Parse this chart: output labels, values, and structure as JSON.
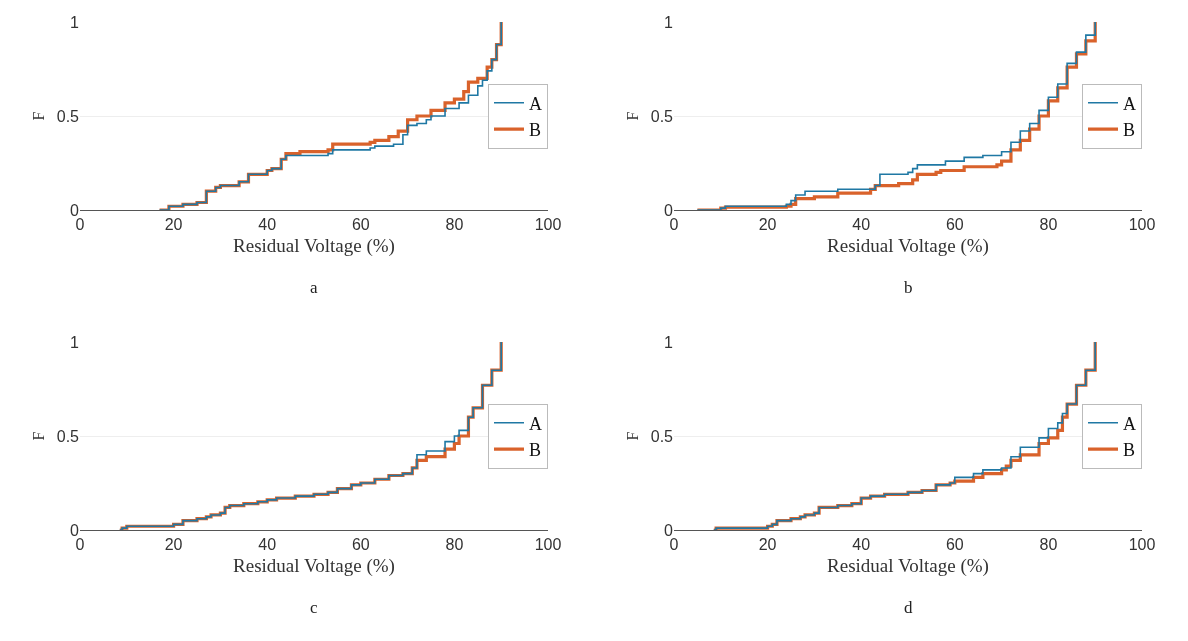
{
  "chart_data": [
    {
      "type": "step",
      "xlabel": "Residual Voltage (%)",
      "ylabel": "F",
      "annotations": [
        "a"
      ],
      "xlim": [
        0,
        100
      ],
      "ylim": [
        0,
        1
      ],
      "xticks": [
        0,
        20,
        40,
        60,
        80,
        100
      ],
      "yticks": [
        0,
        0.5,
        1
      ],
      "grid": "y",
      "legend": "right",
      "series": [
        {
          "name": "A",
          "color": "#1f78a4",
          "x": [
            17,
            19,
            22,
            25,
            27,
            29,
            30,
            34,
            36,
            40,
            41,
            43,
            44,
            47,
            53,
            54,
            62,
            63,
            67,
            69,
            70,
            72,
            74,
            75,
            78,
            81,
            83,
            85,
            86,
            87,
            88,
            89,
            90
          ],
          "values": [
            0,
            0.02,
            0.03,
            0.04,
            0.1,
            0.12,
            0.13,
            0.15,
            0.19,
            0.21,
            0.22,
            0.27,
            0.29,
            0.29,
            0.3,
            0.32,
            0.33,
            0.34,
            0.35,
            0.4,
            0.45,
            0.46,
            0.48,
            0.5,
            0.54,
            0.57,
            0.61,
            0.66,
            0.69,
            0.74,
            0.8,
            0.88,
            1
          ]
        },
        {
          "name": "B",
          "color": "#d9622b",
          "x": [
            17,
            19,
            22,
            25,
            27,
            29,
            30,
            34,
            36,
            40,
            41,
            43,
            44,
            47,
            53,
            54,
            62,
            63,
            66,
            68,
            70,
            72,
            75,
            78,
            80,
            82,
            83,
            85,
            87,
            88,
            89,
            90
          ],
          "values": [
            0,
            0.02,
            0.03,
            0.04,
            0.1,
            0.12,
            0.13,
            0.15,
            0.19,
            0.21,
            0.22,
            0.27,
            0.3,
            0.31,
            0.32,
            0.35,
            0.36,
            0.37,
            0.39,
            0.42,
            0.48,
            0.5,
            0.53,
            0.57,
            0.59,
            0.63,
            0.68,
            0.7,
            0.76,
            0.8,
            0.88,
            1
          ]
        }
      ]
    },
    {
      "type": "step",
      "xlabel": "Residual Voltage (%)",
      "ylabel": "F",
      "annotations": [
        "b"
      ],
      "xlim": [
        0,
        100
      ],
      "ylim": [
        0,
        1
      ],
      "xticks": [
        0,
        20,
        40,
        60,
        80,
        100
      ],
      "yticks": [
        0,
        0.5,
        1
      ],
      "grid": "y",
      "legend": "right",
      "series": [
        {
          "name": "A",
          "color": "#1f78a4",
          "x": [
            5,
            10,
            11,
            24,
            25,
            26,
            28,
            35,
            43,
            44,
            50,
            51,
            52,
            58,
            62,
            66,
            69,
            70,
            72,
            74,
            76,
            78,
            80,
            82,
            84,
            86,
            88,
            90
          ],
          "values": [
            0,
            0.01,
            0.02,
            0.03,
            0.05,
            0.08,
            0.1,
            0.11,
            0.13,
            0.19,
            0.2,
            0.22,
            0.24,
            0.26,
            0.28,
            0.29,
            0.29,
            0.31,
            0.36,
            0.42,
            0.46,
            0.53,
            0.6,
            0.67,
            0.78,
            0.84,
            0.93,
            1
          ]
        },
        {
          "name": "B",
          "color": "#d9622b",
          "x": [
            5,
            10,
            11,
            24,
            25,
            26,
            30,
            35,
            42,
            43,
            48,
            51,
            52,
            56,
            57,
            62,
            69,
            70,
            72,
            74,
            76,
            78,
            80,
            82,
            84,
            86,
            88,
            90
          ],
          "values": [
            0,
            0.01,
            0.015,
            0.02,
            0.03,
            0.06,
            0.07,
            0.09,
            0.11,
            0.13,
            0.14,
            0.16,
            0.19,
            0.2,
            0.21,
            0.23,
            0.24,
            0.26,
            0.32,
            0.37,
            0.43,
            0.5,
            0.58,
            0.65,
            0.76,
            0.83,
            0.9,
            1
          ]
        }
      ]
    },
    {
      "type": "step",
      "xlabel": "Residual Voltage (%)",
      "ylabel": "F",
      "annotations": [
        "c"
      ],
      "xlim": [
        0,
        100
      ],
      "ylim": [
        0,
        1
      ],
      "xticks": [
        0,
        20,
        40,
        60,
        80,
        100
      ],
      "yticks": [
        0,
        0.5,
        1
      ],
      "grid": "y",
      "legend": "right",
      "series": [
        {
          "name": "A",
          "color": "#1f78a4",
          "x": [
            8.5,
            9,
            10,
            20,
            22,
            25,
            27,
            28,
            30,
            31,
            32,
            35,
            38,
            40,
            42,
            46,
            50,
            53,
            55,
            58,
            60,
            63,
            66,
            69,
            71,
            72,
            74,
            78,
            80,
            81,
            83,
            84,
            86,
            88,
            90
          ],
          "values": [
            0,
            0.01,
            0.02,
            0.03,
            0.05,
            0.06,
            0.07,
            0.08,
            0.09,
            0.12,
            0.13,
            0.14,
            0.15,
            0.16,
            0.17,
            0.18,
            0.19,
            0.2,
            0.22,
            0.24,
            0.25,
            0.27,
            0.29,
            0.3,
            0.33,
            0.4,
            0.42,
            0.47,
            0.5,
            0.53,
            0.6,
            0.65,
            0.77,
            0.85,
            1
          ]
        },
        {
          "name": "B",
          "color": "#d9622b",
          "x": [
            8.5,
            9,
            10,
            20,
            22,
            25,
            27,
            28,
            30,
            31,
            32,
            35,
            38,
            40,
            42,
            46,
            50,
            53,
            55,
            58,
            60,
            63,
            66,
            69,
            71,
            72,
            74,
            78,
            80,
            81,
            83,
            84,
            86,
            88,
            90
          ],
          "values": [
            0,
            0.01,
            0.02,
            0.03,
            0.05,
            0.06,
            0.07,
            0.08,
            0.09,
            0.12,
            0.13,
            0.14,
            0.15,
            0.16,
            0.17,
            0.18,
            0.19,
            0.2,
            0.22,
            0.24,
            0.25,
            0.27,
            0.29,
            0.3,
            0.33,
            0.37,
            0.39,
            0.43,
            0.46,
            0.5,
            0.6,
            0.65,
            0.77,
            0.85,
            1
          ]
        }
      ]
    },
    {
      "type": "step",
      "xlabel": "Residual Voltage (%)",
      "ylabel": "F",
      "annotations": [
        "d"
      ],
      "xlim": [
        0,
        100
      ],
      "ylim": [
        0,
        1
      ],
      "xticks": [
        0,
        20,
        40,
        60,
        80,
        100
      ],
      "yticks": [
        0,
        0.5,
        1
      ],
      "grid": "y",
      "legend": "right",
      "series": [
        {
          "name": "A",
          "color": "#1f78a4",
          "x": [
            8.5,
            9,
            20,
            21,
            22,
            25,
            27,
            28,
            30,
            31,
            35,
            38,
            40,
            42,
            45,
            50,
            53,
            56,
            59,
            60,
            64,
            66,
            70,
            72,
            74,
            78,
            80,
            82,
            83,
            84,
            86,
            88,
            90
          ],
          "values": [
            0,
            0.01,
            0.02,
            0.03,
            0.05,
            0.06,
            0.07,
            0.08,
            0.09,
            0.12,
            0.13,
            0.14,
            0.17,
            0.18,
            0.19,
            0.2,
            0.21,
            0.24,
            0.25,
            0.28,
            0.3,
            0.32,
            0.33,
            0.39,
            0.44,
            0.49,
            0.54,
            0.57,
            0.62,
            0.67,
            0.77,
            0.85,
            1
          ]
        },
        {
          "name": "B",
          "color": "#d9622b",
          "x": [
            8.5,
            9,
            20,
            21,
            22,
            25,
            27,
            28,
            30,
            31,
            35,
            38,
            40,
            42,
            45,
            50,
            53,
            56,
            59,
            60,
            64,
            66,
            70,
            71,
            72,
            74,
            78,
            80,
            82,
            83,
            84,
            86,
            88,
            90
          ],
          "values": [
            0,
            0.01,
            0.02,
            0.03,
            0.05,
            0.06,
            0.07,
            0.08,
            0.09,
            0.12,
            0.13,
            0.14,
            0.17,
            0.18,
            0.19,
            0.2,
            0.21,
            0.24,
            0.25,
            0.26,
            0.28,
            0.3,
            0.32,
            0.34,
            0.37,
            0.4,
            0.46,
            0.49,
            0.53,
            0.6,
            0.67,
            0.77,
            0.85,
            1
          ]
        }
      ]
    }
  ]
}
